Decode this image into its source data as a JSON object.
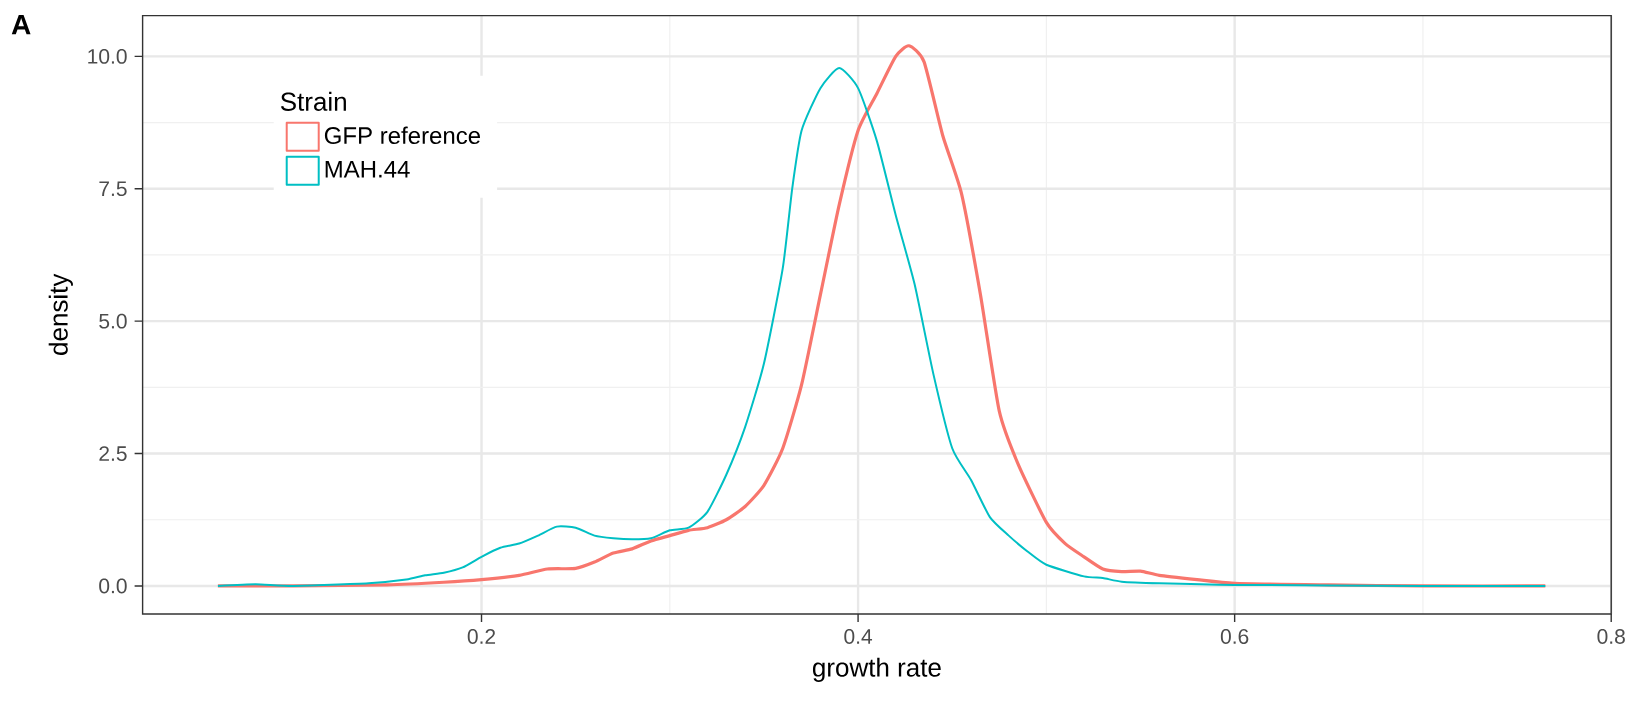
{
  "chart_data": {
    "type": "line",
    "xlabel": "growth rate",
    "ylabel": "density",
    "legend_title": "Strain",
    "annotations": [
      "A"
    ],
    "series": [
      {
        "name": "GFP reference",
        "color": "#f8766d",
        "x": [
          0.06,
          0.1,
          0.15,
          0.18,
          0.2,
          0.22,
          0.235,
          0.25,
          0.26,
          0.27,
          0.28,
          0.29,
          0.3,
          0.31,
          0.32,
          0.33,
          0.34,
          0.35,
          0.36,
          0.37,
          0.38,
          0.39,
          0.4,
          0.41,
          0.42,
          0.427,
          0.435,
          0.445,
          0.455,
          0.465,
          0.475,
          0.485,
          0.5,
          0.51,
          0.52,
          0.53,
          0.54,
          0.55,
          0.56,
          0.58,
          0.6,
          0.65,
          0.7,
          0.765
        ],
        "values": [
          0,
          0,
          0.02,
          0.07,
          0.12,
          0.2,
          0.32,
          0.33,
          0.45,
          0.62,
          0.7,
          0.85,
          0.95,
          1.05,
          1.1,
          1.25,
          1.5,
          1.9,
          2.6,
          3.8,
          5.5,
          7.2,
          8.6,
          9.3,
          10.0,
          10.2,
          9.9,
          8.5,
          7.4,
          5.5,
          3.3,
          2.3,
          1.2,
          0.8,
          0.55,
          0.32,
          0.27,
          0.28,
          0.2,
          0.12,
          0.05,
          0.02,
          0,
          0
        ]
      },
      {
        "name": "MAH.44",
        "color": "#00bfc4",
        "x": [
          0.06,
          0.08,
          0.1,
          0.14,
          0.16,
          0.17,
          0.18,
          0.19,
          0.2,
          0.21,
          0.22,
          0.23,
          0.24,
          0.25,
          0.26,
          0.27,
          0.28,
          0.29,
          0.3,
          0.31,
          0.32,
          0.33,
          0.34,
          0.35,
          0.36,
          0.365,
          0.37,
          0.38,
          0.39,
          0.4,
          0.41,
          0.42,
          0.43,
          0.44,
          0.45,
          0.46,
          0.47,
          0.48,
          0.49,
          0.5,
          0.52,
          0.53,
          0.54,
          0.56,
          0.6,
          0.7,
          0.765
        ],
        "values": [
          0,
          0.03,
          0,
          0.05,
          0.12,
          0.2,
          0.25,
          0.35,
          0.55,
          0.72,
          0.8,
          0.95,
          1.12,
          1.1,
          0.95,
          0.9,
          0.88,
          0.9,
          1.05,
          1.1,
          1.4,
          2.1,
          3.0,
          4.2,
          6.0,
          7.5,
          8.6,
          9.4,
          9.78,
          9.4,
          8.4,
          7.0,
          5.7,
          4.0,
          2.6,
          2.0,
          1.3,
          0.95,
          0.65,
          0.4,
          0.18,
          0.15,
          0.08,
          0.05,
          0.02,
          0,
          0
        ]
      }
    ],
    "xlim": [
      0.02,
      0.8
    ],
    "ylim": [
      -0.53,
      10.77
    ],
    "xticks": [
      0.2,
      0.4,
      0.6,
      0.8
    ],
    "yticks": [
      {
        "value": 0,
        "label": "0.0"
      },
      {
        "value": 2.5,
        "label": "2.5"
      },
      {
        "value": 5,
        "label": "5.0"
      },
      {
        "value": 7.5,
        "label": "7.5"
      },
      {
        "value": 10,
        "label": "10.0"
      }
    ],
    "grid": true,
    "legend": "top left"
  }
}
